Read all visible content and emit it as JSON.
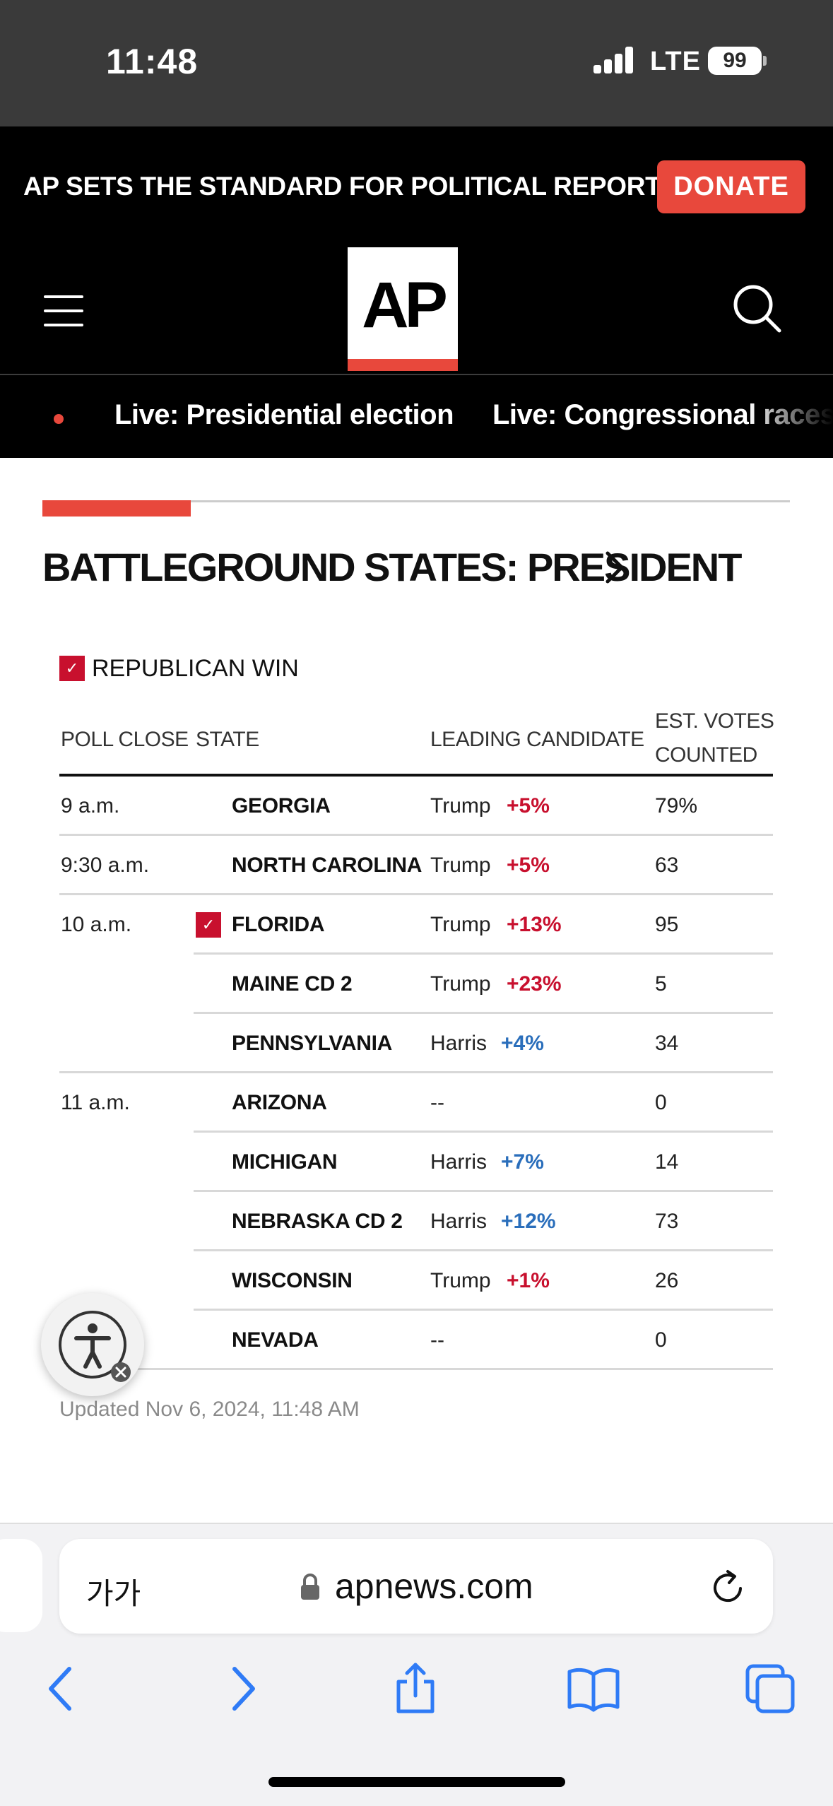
{
  "status": {
    "time": "11:48",
    "network": "LTE",
    "battery": "99"
  },
  "promo": {
    "text": "AP SETS THE STANDARD FOR POLITICAL REPORTING.",
    "donate_label": "DONATE"
  },
  "header": {
    "logo": "AP"
  },
  "live": {
    "links": [
      "Live: Presidential election",
      "Live: Congressional races"
    ]
  },
  "section": {
    "title": "BATTLEGROUND STATES: PRESIDENT"
  },
  "legend": {
    "label": "REPUBLICAN WIN"
  },
  "table": {
    "headers": {
      "poll_close": "POLL CLOSE",
      "state": "STATE",
      "leading_candidate": "LEADING CANDIDATE",
      "est_line1": "EST. VOTES",
      "est_line2": "COUNTED"
    },
    "rows": [
      {
        "poll": "9 a.m.",
        "state": "GEORGIA",
        "candidate": "Trump",
        "margin": "+5%",
        "party": "R",
        "counted": "79%",
        "win": false
      },
      {
        "poll": "9:30 a.m.",
        "state": "NORTH CAROLINA",
        "candidate": "Trump",
        "margin": "+5%",
        "party": "R",
        "counted": "63",
        "win": false
      },
      {
        "poll": "10 a.m.",
        "state": "FLORIDA",
        "candidate": "Trump",
        "margin": "+13%",
        "party": "R",
        "counted": "95",
        "win": true
      },
      {
        "poll": "",
        "state": "MAINE CD 2",
        "candidate": "Trump",
        "margin": "+23%",
        "party": "R",
        "counted": "5",
        "win": false
      },
      {
        "poll": "",
        "state": "PENNSYLVANIA",
        "candidate": "Harris",
        "margin": "+4%",
        "party": "D",
        "counted": "34",
        "win": false
      },
      {
        "poll": "11 a.m.",
        "state": "ARIZONA",
        "candidate": "--",
        "margin": "",
        "party": "",
        "counted": "0",
        "win": false
      },
      {
        "poll": "",
        "state": "MICHIGAN",
        "candidate": "Harris",
        "margin": "+7%",
        "party": "D",
        "counted": "14",
        "win": false
      },
      {
        "poll": "",
        "state": "NEBRASKA CD 2",
        "candidate": "Harris",
        "margin": "+12%",
        "party": "D",
        "counted": "73",
        "win": false
      },
      {
        "poll": "",
        "state": "WISCONSIN",
        "candidate": "Trump",
        "margin": "+1%",
        "party": "R",
        "counted": "26",
        "win": false
      },
      {
        "poll": "",
        "state": "NEVADA",
        "candidate": "--",
        "margin": "",
        "party": "",
        "counted": "0",
        "win": false
      }
    ]
  },
  "updated": "Updated Nov 6, 2024, 11:48 AM",
  "browser": {
    "aa_label": "가가",
    "url": "apnews.com"
  },
  "colors": {
    "ap_red": "#e8483c",
    "republican": "#c8102e",
    "democrat": "#2a6ebb",
    "browser_blue": "#2f7bf6"
  },
  "icons": [
    "hamburger-menu-icon",
    "search-icon",
    "chevron-right-icon",
    "accessibility-icon",
    "lock-icon",
    "reload-icon",
    "back-icon",
    "forward-icon",
    "share-icon",
    "bookmarks-icon",
    "tabs-icon"
  ]
}
